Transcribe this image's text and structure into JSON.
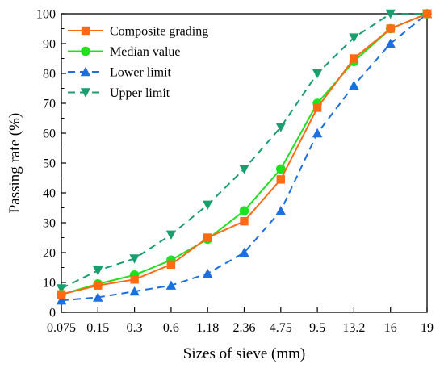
{
  "chart_data": {
    "type": "line",
    "xlabel": "Sizes of sieve (mm)",
    "ylabel": "Passing rate (%)",
    "categories": [
      "0.075",
      "0.15",
      "0.3",
      "0.6",
      "1.18",
      "2.36",
      "4.75",
      "9.5",
      "13.2",
      "16",
      "19"
    ],
    "ylim": [
      0,
      100
    ],
    "yticks": [
      0,
      10,
      20,
      30,
      40,
      50,
      60,
      70,
      80,
      90,
      100
    ],
    "grid": false,
    "legend_position": "top-left",
    "series": [
      {
        "name": "Composite grading",
        "color": "#ff6a13",
        "marker": "square",
        "dash": "solid",
        "values": [
          6,
          9,
          11,
          16,
          25,
          30.5,
          44.5,
          68.5,
          85,
          95,
          100
        ]
      },
      {
        "name": "Median value",
        "color": "#1fe21f",
        "marker": "circle",
        "dash": "solid",
        "values": [
          6,
          9.5,
          12.5,
          17.5,
          24.5,
          34,
          48,
          70,
          84,
          95,
          100
        ]
      },
      {
        "name": "Lower limit",
        "color": "#1c6fe0",
        "marker": "triangle-up",
        "dash": "dashed",
        "values": [
          4,
          5,
          7,
          9,
          13,
          20,
          34,
          60,
          76,
          90,
          100
        ]
      },
      {
        "name": "Upper limit",
        "color": "#1a9e6e",
        "marker": "triangle-down",
        "dash": "dashed",
        "values": [
          8,
          14,
          18,
          26,
          36,
          48,
          62,
          80,
          92,
          100,
          100
        ]
      }
    ]
  }
}
